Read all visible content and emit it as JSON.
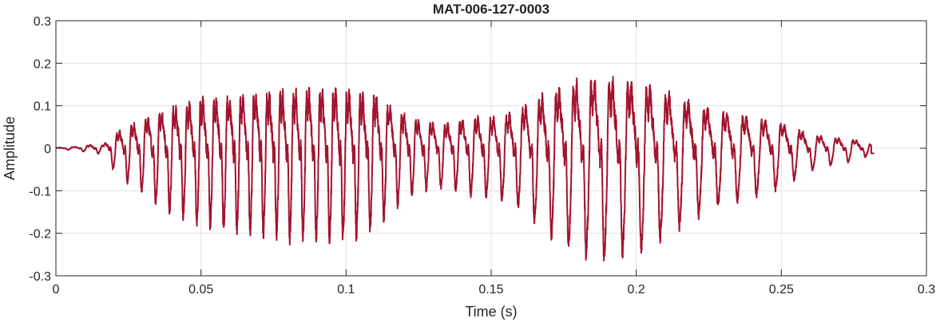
{
  "chart_data": {
    "type": "line",
    "title": "MAT-006-127-0003",
    "xlabel": "Time (s)",
    "ylabel": "Amplitude",
    "xlim": [
      0,
      0.3
    ],
    "ylim": [
      -0.3,
      0.3
    ],
    "xticks": [
      0,
      0.05,
      0.1,
      0.15,
      0.2,
      0.25,
      0.3
    ],
    "xtick_labels": [
      "0",
      "0.05",
      "0.1",
      "0.15",
      "0.2",
      "0.25",
      "0.3"
    ],
    "yticks": [
      -0.3,
      -0.2,
      -0.1,
      0,
      0.1,
      0.2,
      0.3
    ],
    "ytick_labels": [
      "-0.3",
      "-0.2",
      "-0.1",
      "0",
      "0.1",
      "0.2",
      "0.3"
    ],
    "grid": true,
    "line_color": "#A2142F",
    "series": [
      {
        "x": [
          0,
          0.005,
          0.01,
          0.013,
          0.016,
          0.02,
          0.025,
          0.03,
          0.035,
          0.04,
          0.045,
          0.05,
          0.055,
          0.06,
          0.065,
          0.07,
          0.075,
          0.08,
          0.085,
          0.09,
          0.095,
          0.1,
          0.105,
          0.11,
          0.115,
          0.12,
          0.125,
          0.13,
          0.135,
          0.14,
          0.145,
          0.15,
          0.155,
          0.16,
          0.165,
          0.17,
          0.175,
          0.18,
          0.185,
          0.19,
          0.195,
          0.2,
          0.205,
          0.21,
          0.215,
          0.22,
          0.225,
          0.23,
          0.235,
          0.24,
          0.245,
          0.25,
          0.255,
          0.26,
          0.265,
          0.27,
          0.275,
          0.282
        ],
        "envelope": [
          0.002,
          0.004,
          0.008,
          0.015,
          0.01,
          0.05,
          0.08,
          0.1,
          0.13,
          0.15,
          0.16,
          0.18,
          0.18,
          0.19,
          0.19,
          0.2,
          0.2,
          0.21,
          0.21,
          0.21,
          0.21,
          0.21,
          0.2,
          0.19,
          0.15,
          0.12,
          0.1,
          0.09,
          0.09,
          0.1,
          0.11,
          0.11,
          0.12,
          0.14,
          0.17,
          0.2,
          0.22,
          0.24,
          0.25,
          0.25,
          0.24,
          0.24,
          0.22,
          0.2,
          0.18,
          0.16,
          0.14,
          0.13,
          0.12,
          0.11,
          0.1,
          0.09,
          0.07,
          0.05,
          0.04,
          0.035,
          0.03,
          0.012
        ]
      }
    ]
  }
}
